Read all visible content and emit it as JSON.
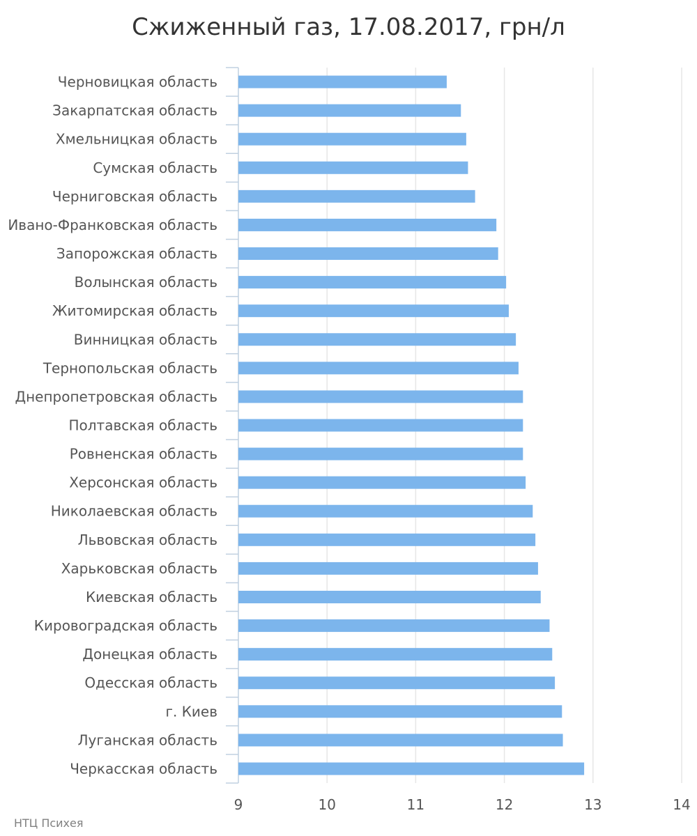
{
  "chart_data": {
    "type": "bar",
    "orientation": "horizontal",
    "title": "Сжиженный газ, 17.08.2017, грн/л",
    "categories": [
      "Черновицкая область",
      "Закарпатская область",
      "Хмельницкая область",
      "Сумская область",
      "Черниговская область",
      "Ивано-Франковская область",
      "Запорожская область",
      "Волынская область",
      "Житомирская область",
      "Винницкая область",
      "Тернопольская область",
      "Днепропетровская область",
      "Полтавская область",
      "Ровненская область",
      "Херсонская область",
      "Николаевская область",
      "Львовская область",
      "Харьковская область",
      "Киевская область",
      "Кировоградская область",
      "Донецкая область",
      "Одесская область",
      "г. Киев",
      "Луганская область",
      "Черкасская область"
    ],
    "values": [
      11.35,
      11.51,
      11.57,
      11.59,
      11.67,
      11.91,
      11.93,
      12.02,
      12.05,
      12.13,
      12.16,
      12.21,
      12.21,
      12.21,
      12.24,
      12.32,
      12.35,
      12.38,
      12.41,
      12.51,
      12.54,
      12.57,
      12.65,
      12.66,
      12.9
    ],
    "xlim": [
      9,
      14
    ],
    "xticks": [
      "9",
      "10",
      "11",
      "12",
      "13",
      "14"
    ],
    "xlabel": "",
    "ylabel": "",
    "grid": true,
    "bar_color": "#7cb5ec",
    "grid_color": "#e6e6e6",
    "axis_color": "#c0d0e0"
  },
  "source": "НТЦ Психея"
}
